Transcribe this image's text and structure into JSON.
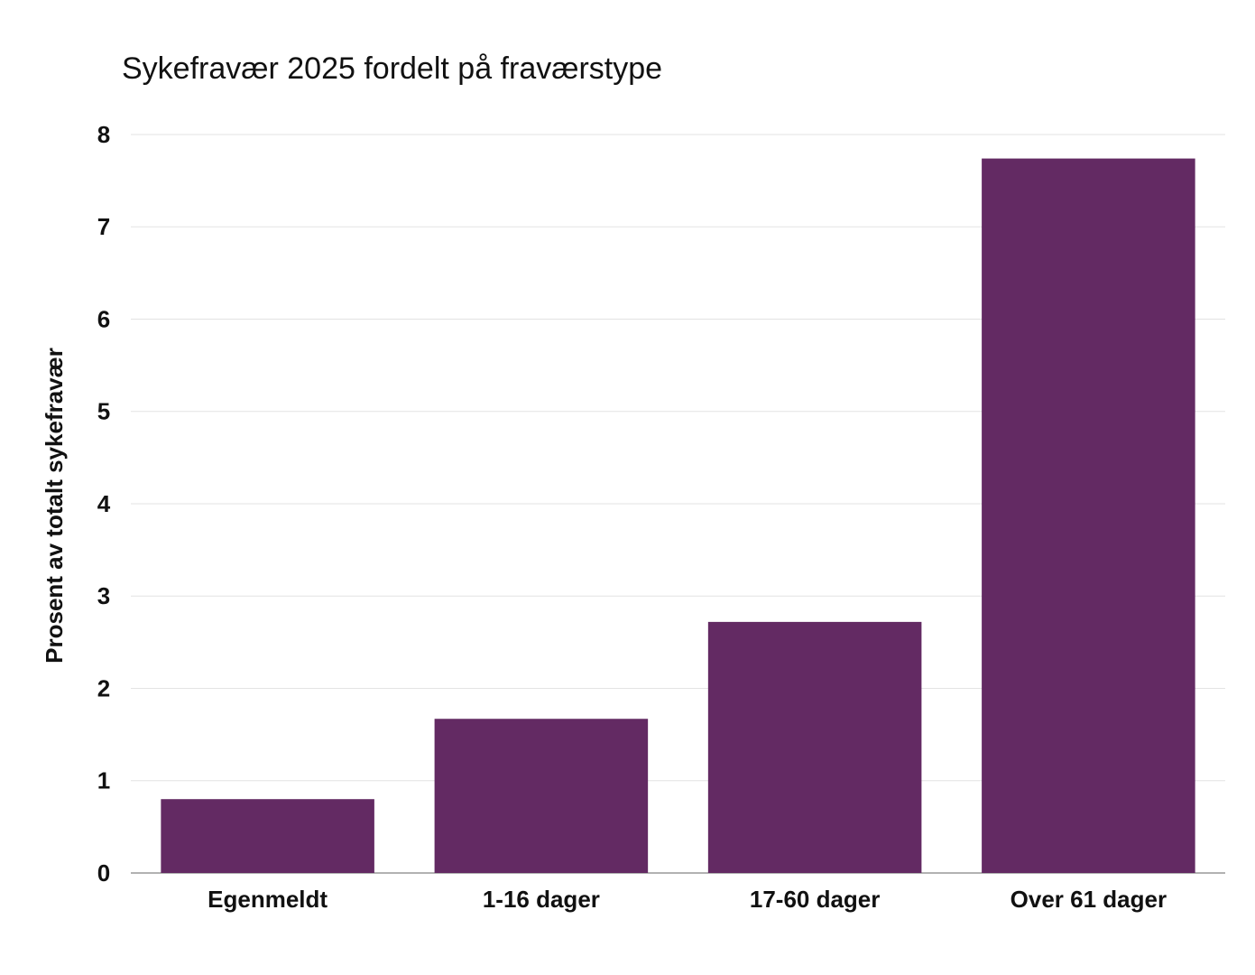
{
  "chart_data": {
    "type": "bar",
    "title": "Sykefravær 2025 fordelt på fraværstype",
    "y_label": "Prosent av totalt sykefravær",
    "categories": [
      "Egenmeldt",
      "1-16 dager",
      "17-60 dager",
      "Over 61 dager"
    ],
    "values": [
      0.8,
      1.67,
      2.72,
      7.74
    ],
    "color": "#632a63",
    "ylim": [
      0,
      8
    ],
    "yticks": [
      0,
      1,
      2,
      3,
      4,
      5,
      6,
      7,
      8
    ],
    "grid": true
  }
}
